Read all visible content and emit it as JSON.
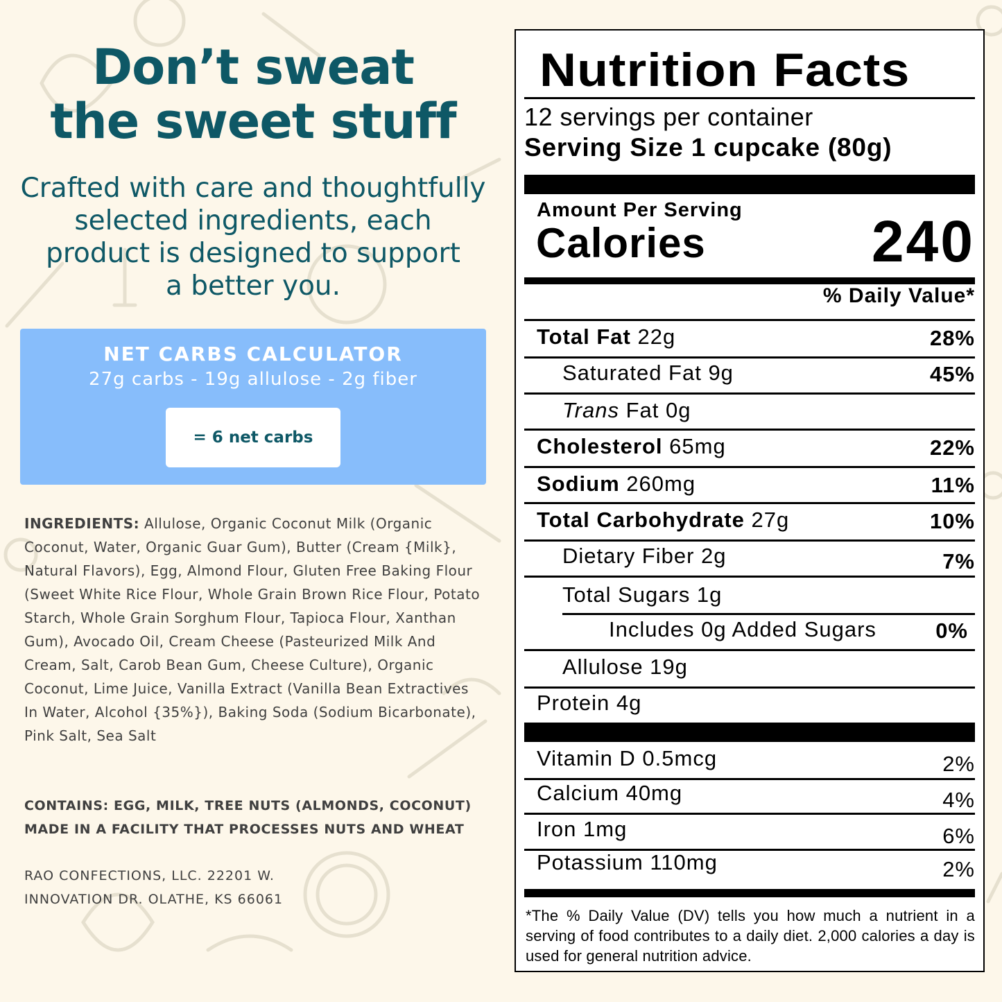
{
  "headline": {
    "line1": "Don’t sweat",
    "line2": "the sweet stuff"
  },
  "subhead": {
    "line1": "Crafted with care and thoughtfully",
    "line2": "selected ingredients, each",
    "line3": "product is designed to support",
    "line4": "a better you."
  },
  "calculator": {
    "title": "NET CARBS CALCULATOR",
    "formula": "27g carbs - 19g allulose - 2g fiber",
    "result": "= 6 net carbs"
  },
  "ingredients": {
    "label": "INGREDIENTS:",
    "text": " Allulose, Organic Coconut Milk (Organic Coconut, Water, Organic Guar Gum), Butter (Cream {Milk}, Natural Flavors), Egg, Almond Flour, Gluten Free Baking Flour (Sweet White Rice Flour, Whole Grain Brown Rice Flour, Potato Starch, Whole Grain Sorghum Flour, Tapioca Flour, Xanthan Gum), Avocado Oil, Cream Cheese (Pasteurized Milk And Cream, Salt, Carob Bean Gum, Cheese Culture), Organic Coconut, Lime Juice, Vanilla Extract (Vanilla Bean Extractives In Water, Alcohol {35%}), Baking Soda (Sodium Bicarbonate), Pink Salt, Sea Salt"
  },
  "allergens": {
    "line1": "CONTAINS: EGG, MILK, TREE NUTS (ALMONDS, COCONUT)",
    "line2": "MADE IN A FACILITY THAT PROCESSES NUTS AND WHEAT"
  },
  "address": {
    "line1": "RAO CONFECTIONS, LLC. 22201 W.",
    "line2": "INNOVATION DR. OLATHE, KS 66061"
  },
  "nutrition": {
    "title": "Nutrition Facts",
    "servings_per_container": "12 servings per container",
    "serving_size": "Serving Size 1 cupcake (80g)",
    "amount_per_serving": "Amount Per Serving",
    "calories_label": "Calories",
    "calories_value": "240",
    "daily_value_header": "% Daily Value*",
    "rows": {
      "total_fat": {
        "name": "Total Fat",
        "amount": " 22g",
        "dv": "28%"
      },
      "saturated_fat": {
        "name": "Saturated Fat 9g",
        "dv": "45%"
      },
      "trans_fat": {
        "name_italic": "Trans",
        "name_rest": " Fat 0g"
      },
      "cholesterol": {
        "name": "Cholesterol",
        "amount": " 65mg",
        "dv": "22%"
      },
      "sodium": {
        "name": "Sodium",
        "amount": " 260mg",
        "dv": "11%"
      },
      "total_carbohydrate": {
        "name": "Total Carbohydrate",
        "amount": " 27g",
        "dv": "10%"
      },
      "dietary_fiber": {
        "name": "Dietary Fiber 2g",
        "dv": "7%"
      },
      "total_sugars": {
        "name": "Total Sugars 1g"
      },
      "added_sugars": {
        "name": "Includes 0g Added Sugars",
        "dv": "0%"
      },
      "allulose": {
        "name": "Allulose 19g"
      },
      "protein": {
        "name": "Protein 4g"
      },
      "vitamin_d": {
        "name": "Vitamin D 0.5mcg",
        "dv": "2%"
      },
      "calcium": {
        "name": "Calcium 40mg",
        "dv": "4%"
      },
      "iron": {
        "name": "Iron 1mg",
        "dv": "6%"
      },
      "potassium": {
        "name": "Potassium 110mg",
        "dv": "2%"
      }
    },
    "footnote": "*The % Daily Value (DV) tells you how much a nutrient in a serving of food contributes to a daily diet. 2,000 calories a day is used for general nutrition advice."
  },
  "colors": {
    "background": "#fdf7ea",
    "brand_teal": "#0e5866",
    "calculator_blue": "#87bdfb",
    "doodle": "#e9e3d2"
  }
}
